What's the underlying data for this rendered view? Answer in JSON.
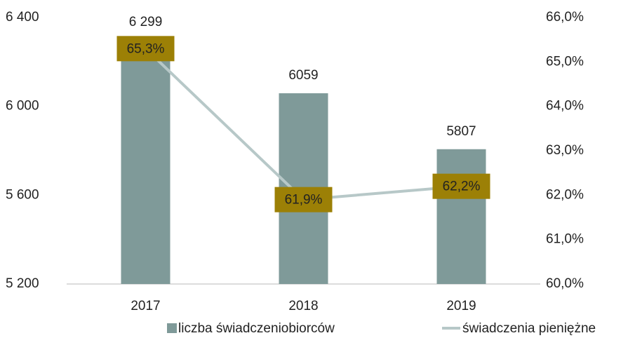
{
  "chart_data": {
    "type": "combo",
    "categories": [
      "2017",
      "2018",
      "2019"
    ],
    "series": [
      {
        "name": "liczba świadczeniobiorców",
        "type": "bar",
        "color": "#7f9a99",
        "values": [
          6299,
          6059,
          5807
        ],
        "value_labels": [
          "6 299",
          "6059",
          "5807"
        ]
      },
      {
        "name": "świadczenia pieniężne",
        "type": "line",
        "axis": "y2",
        "color": "#b7c8c8",
        "label_box": "#9c8006",
        "values": [
          65.3,
          61.9,
          62.2
        ],
        "value_labels": [
          "65,3%",
          "61,9%",
          "62,2%"
        ]
      }
    ],
    "ylim": [
      5200,
      6400
    ],
    "yticks": [
      {
        "value": 5200,
        "label": "5 200"
      },
      {
        "value": 5600,
        "label": "5 600"
      },
      {
        "value": 6000,
        "label": "6 000"
      },
      {
        "value": 6400,
        "label": "6 400"
      }
    ],
    "y2lim": [
      60,
      66
    ],
    "y2ticks": [
      {
        "value": 60,
        "label": "60,0%"
      },
      {
        "value": 61,
        "label": "61,0%"
      },
      {
        "value": 62,
        "label": "62,0%"
      },
      {
        "value": 63,
        "label": "63,0%"
      },
      {
        "value": 64,
        "label": "64,0%"
      },
      {
        "value": 65,
        "label": "65,0%"
      },
      {
        "value": 66,
        "label": "66,0%"
      }
    ],
    "legend": "bottom"
  }
}
